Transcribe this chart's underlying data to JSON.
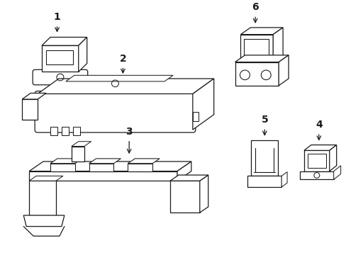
{
  "background_color": "#ffffff",
  "line_color": "#1a1a1a",
  "line_width": 0.9,
  "label_color": "#000000",
  "fig_w": 4.89,
  "fig_h": 3.6,
  "dpi": 100
}
